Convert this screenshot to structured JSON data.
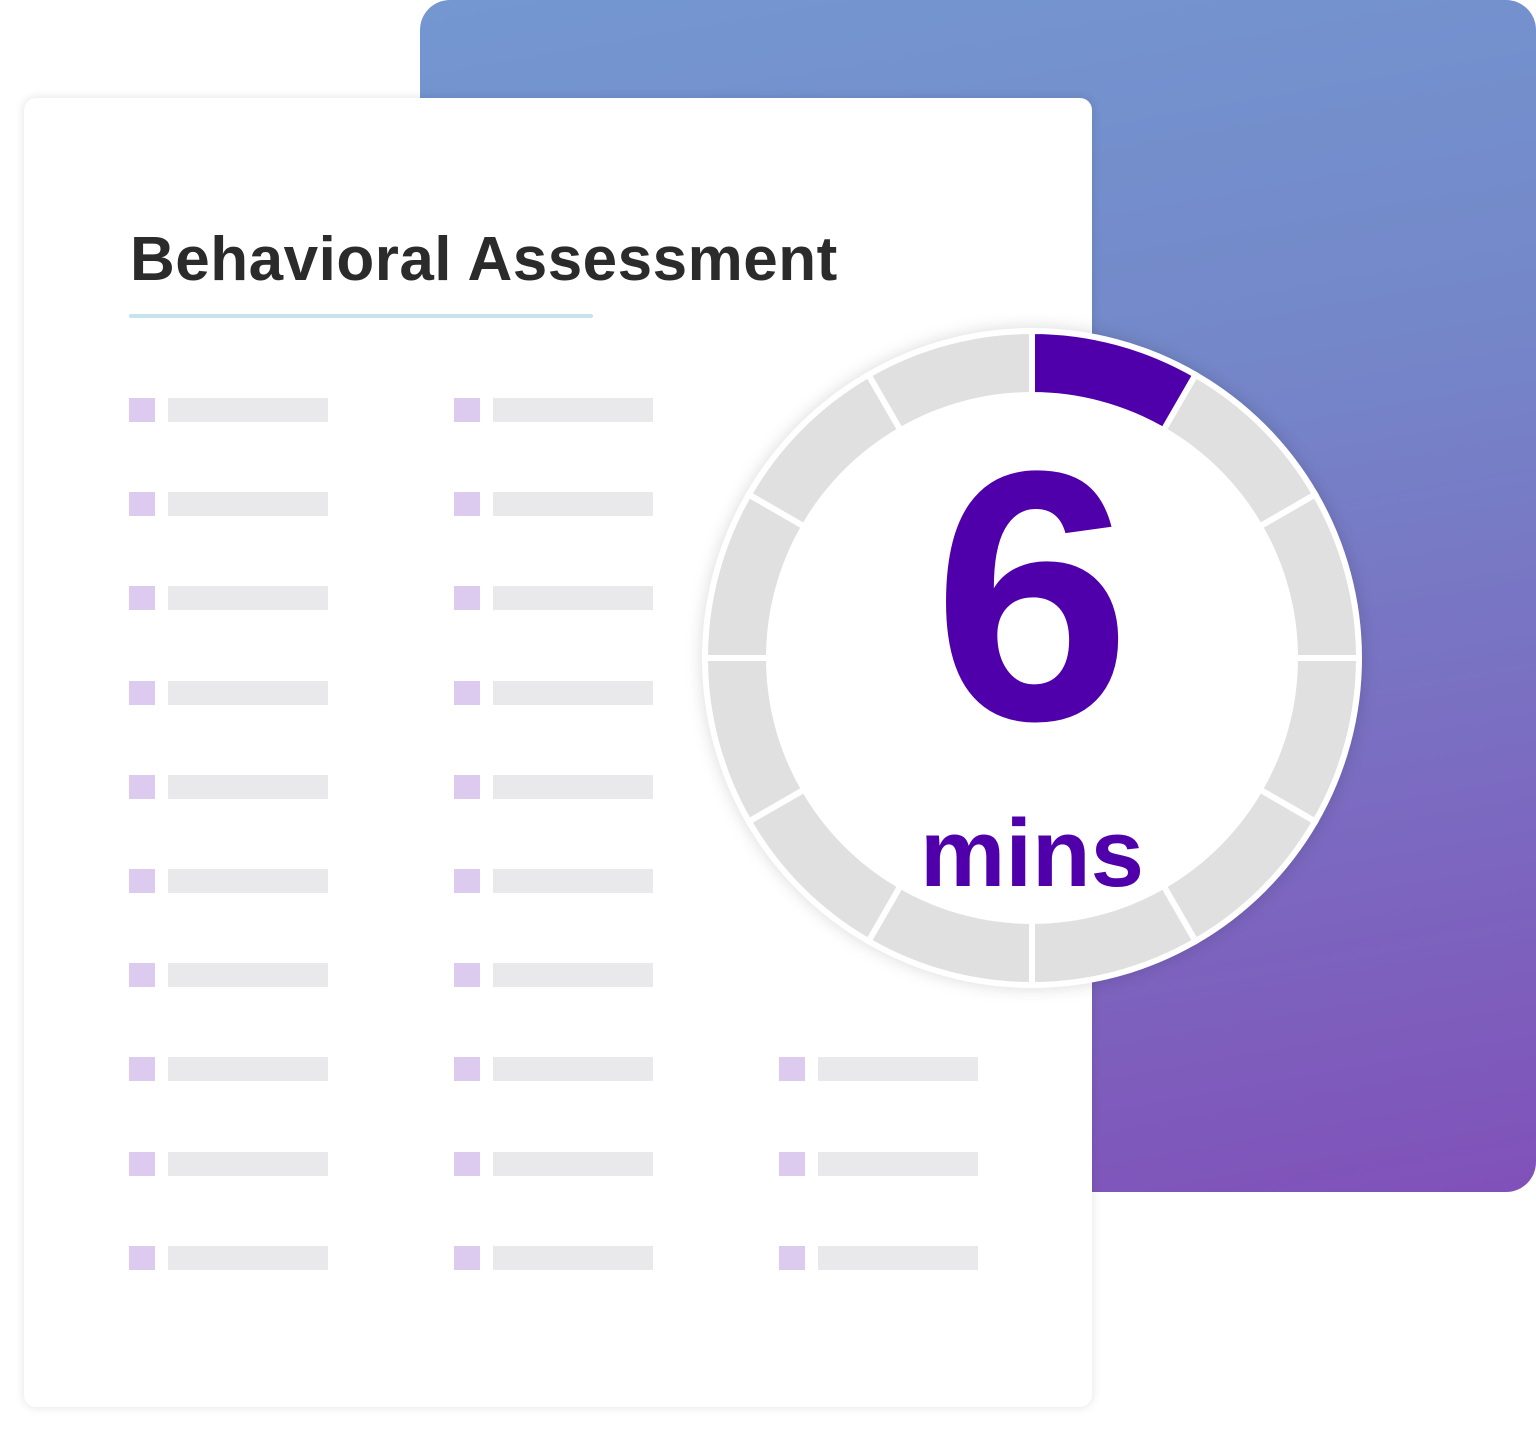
{
  "card": {
    "title": "Behavioral Assessment"
  },
  "timer": {
    "value": "6",
    "unit": "mins",
    "segments_total": 12,
    "segments_filled": 1
  },
  "colors": {
    "accent": "#5000aa",
    "ring_track": "#e0e0e0",
    "placeholder_square": "#dccbee",
    "placeholder_bar": "#e9e9eb",
    "underline": "#c6e3ee",
    "panel_top": "#7497d1",
    "panel_bottom": "#8051b9"
  }
}
